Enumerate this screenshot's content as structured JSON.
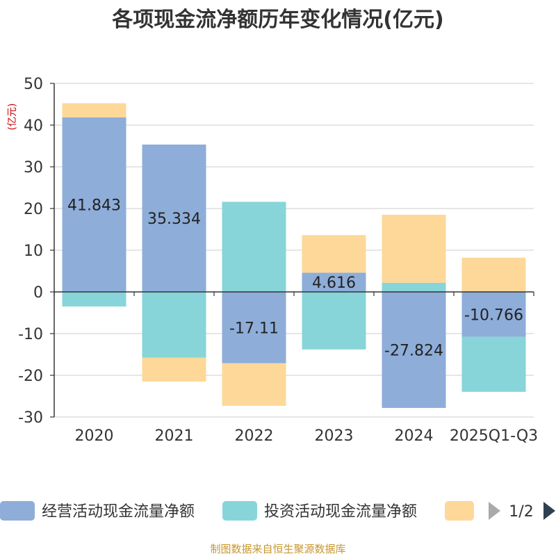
{
  "colors": {
    "operating": "#8eadd9",
    "investing": "#87d5d8",
    "financing": "#fdd898",
    "source": "#c8962e",
    "unit": "#cc0000",
    "pager_active": "#2f4050",
    "pager_inactive": "#aaaaaa"
  },
  "chart_data": {
    "type": "bar",
    "stacked": true,
    "title": "各项现金流净额历年变化情况(亿元)",
    "ylabel": "(亿元)",
    "ylim": [
      -30,
      50
    ],
    "yticks": [
      50,
      40,
      30,
      20,
      10,
      0,
      -10,
      -20,
      -30
    ],
    "grid": true,
    "categories": [
      "2020",
      "2021",
      "2022",
      "2023",
      "2024",
      "2025Q1-Q3"
    ],
    "series": [
      {
        "name": "经营活动现金流量净额",
        "color": "#8eadd9",
        "values": [
          41.843,
          35.334,
          -17.11,
          4.616,
          -27.824,
          -10.766
        ]
      },
      {
        "name": "投资活动现金流量净额",
        "color": "#87d5d8",
        "values": [
          -3.5,
          -15.8,
          21.6,
          -13.8,
          2.2,
          -13.2
        ]
      },
      {
        "name": "",
        "color": "#fdd898",
        "values": [
          3.4,
          -5.7,
          -10.2,
          9.0,
          16.3,
          8.2
        ]
      }
    ],
    "data_labels": [
      "41.843",
      "35.334",
      "-17.11",
      "4.616",
      "-27.824",
      "-10.766"
    ],
    "legend": {
      "position": "bottom",
      "page": "1/2"
    }
  },
  "source": "制图数据来自恒生聚源数据库"
}
